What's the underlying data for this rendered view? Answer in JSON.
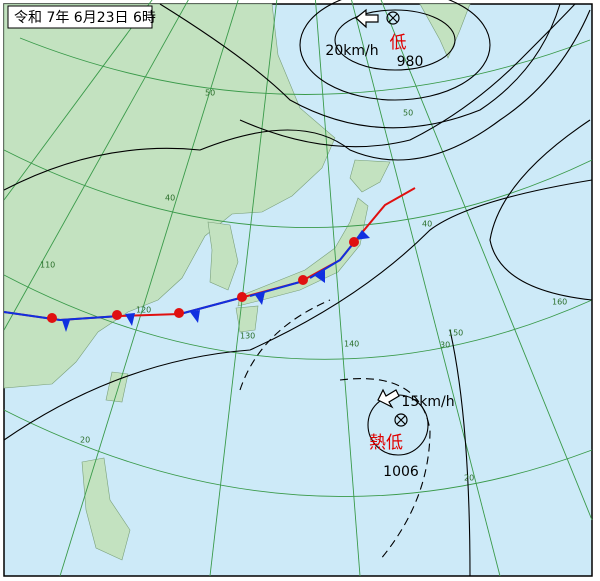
{
  "header": {
    "title": "令和 7年 6月23日 6時"
  },
  "systems": [
    {
      "label": "低",
      "pressure": 980,
      "speed": "20km/h"
    },
    {
      "label": "熱低",
      "pressure": 1006,
      "speed": "15km/h"
    }
  ],
  "grid_labels": {
    "latitude": [
      "50",
      "50",
      "40",
      "40",
      "30",
      "20",
      "20"
    ],
    "longitude": [
      "110",
      "120",
      "130",
      "140",
      "150",
      "160"
    ]
  }
}
